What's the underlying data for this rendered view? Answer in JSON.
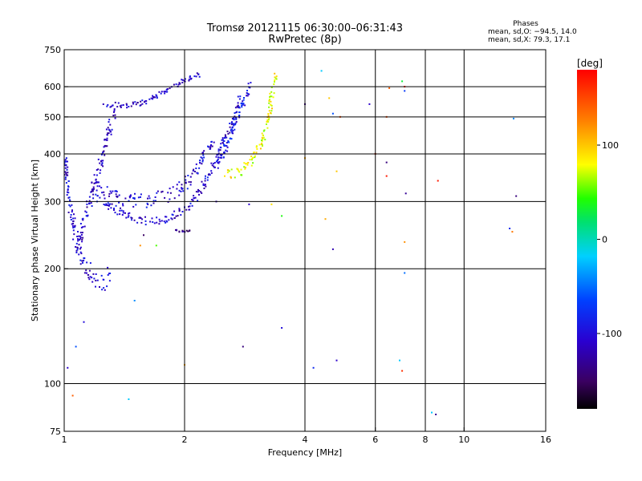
{
  "chart_data": {
    "type": "scatter",
    "title": "Tromsø 20121115 06:30:00–06:31:43",
    "subtitle": "RwPretec (8p)",
    "stats_header": "Phases",
    "stats_line1": "mean, sd,O: −94.5, 14.0",
    "stats_line2": "mean, sd,X:  79.3, 17.1",
    "xlabel": "Frequency [MHz]",
    "ylabel": "Stationary phase Virtual Height [km]",
    "x_scale": "log",
    "y_scale": "log",
    "xlim": [
      1,
      16
    ],
    "ylim": [
      75,
      750
    ],
    "x_ticks": [
      {
        "value": 1,
        "label": "1"
      },
      {
        "value": 2,
        "label": "2"
      },
      {
        "value": 4,
        "label": "4"
      },
      {
        "value": 6,
        "label": "6"
      },
      {
        "value": 8,
        "label": "8"
      },
      {
        "value": 10,
        "label": "10"
      },
      {
        "value": 16,
        "label": "16"
      }
    ],
    "y_ticks": [
      {
        "value": 75,
        "label": "75"
      },
      {
        "value": 100,
        "label": "100"
      },
      {
        "value": 200,
        "label": "200"
      },
      {
        "value": 300,
        "label": "300"
      },
      {
        "value": 400,
        "label": "400"
      },
      {
        "value": 500,
        "label": "500"
      },
      {
        "value": 600,
        "label": "600"
      },
      {
        "value": 750,
        "label": "750"
      }
    ],
    "x_gridlines": [
      2,
      4,
      6,
      8,
      10
    ],
    "y_gridlines": [
      100,
      200,
      300,
      400,
      500,
      600
    ],
    "grid": true,
    "colorbar": {
      "label": "[deg]",
      "range": [
        -180,
        180
      ],
      "ticks": [
        {
          "value": 100,
          "label": "100"
        },
        {
          "value": 0,
          "label": "0"
        },
        {
          "value": -100,
          "label": "-100"
        }
      ],
      "colormap": "rainbow"
    },
    "traces": [
      {
        "points": [
          [
            1.0,
            400
          ],
          [
            1.03,
            300
          ],
          [
            1.07,
            240
          ],
          [
            1.12,
            205
          ],
          [
            1.18,
            190
          ],
          [
            1.25,
            185
          ],
          [
            1.3,
            195
          ]
        ],
        "phase": -105,
        "spread": 0.06
      },
      {
        "points": [
          [
            1.08,
            230
          ],
          [
            1.12,
            270
          ],
          [
            1.18,
            320
          ],
          [
            1.25,
            400
          ],
          [
            1.3,
            470
          ],
          [
            1.35,
            520
          ]
        ],
        "phase": -110,
        "spread": 0.05
      },
      {
        "points": [
          [
            1.2,
            310
          ],
          [
            1.35,
            285
          ],
          [
            1.5,
            270
          ],
          [
            1.65,
            265
          ],
          [
            1.8,
            270
          ],
          [
            1.95,
            280
          ],
          [
            2.1,
            300
          ],
          [
            2.3,
            350
          ],
          [
            2.45,
            410
          ],
          [
            2.6,
            470
          ],
          [
            2.7,
            520
          ],
          [
            2.75,
            560
          ]
        ],
        "phase": -105,
        "spread": 0.025
      },
      {
        "points": [
          [
            1.25,
            540
          ],
          [
            1.45,
            535
          ],
          [
            1.6,
            548
          ],
          [
            1.75,
            575
          ],
          [
            1.9,
            605
          ],
          [
            2.05,
            628
          ],
          [
            2.2,
            645
          ]
        ],
        "phase": -110,
        "spread": 0.015
      },
      {
        "points": [
          [
            1.2,
            330
          ],
          [
            1.4,
            305
          ],
          [
            1.6,
            300
          ],
          [
            1.8,
            310
          ],
          [
            2.0,
            330
          ],
          [
            2.2,
            380
          ],
          [
            2.35,
            430
          ]
        ],
        "phase": -105,
        "spread": 0.04
      },
      {
        "points": [
          [
            2.4,
            370
          ],
          [
            2.55,
            420
          ],
          [
            2.65,
            470
          ],
          [
            2.75,
            520
          ],
          [
            2.85,
            570
          ],
          [
            2.92,
            600
          ]
        ],
        "phase": -90,
        "spread": 0.03
      },
      {
        "points": [
          [
            2.5,
            350
          ],
          [
            2.75,
            360
          ],
          [
            2.95,
            385
          ],
          [
            3.1,
            420
          ],
          [
            3.2,
            470
          ],
          [
            3.28,
            530
          ],
          [
            3.33,
            600
          ],
          [
            3.38,
            640
          ]
        ],
        "phase": 80,
        "spread": 0.03
      },
      {
        "points": [
          [
            1.9,
            252
          ],
          [
            2.0,
            250
          ],
          [
            2.08,
            252
          ]
        ],
        "phase": -140,
        "spread": 0.005
      }
    ],
    "scatter_points": [
      [
        1.02,
        110,
        -110
      ],
      [
        1.05,
        93,
        140
      ],
      [
        1.07,
        125,
        -60
      ],
      [
        1.12,
        145,
        -100
      ],
      [
        1.45,
        91,
        -20
      ],
      [
        1.5,
        165,
        -40
      ],
      [
        1.55,
        230,
        120
      ],
      [
        1.58,
        245,
        -150
      ],
      [
        1.7,
        230,
        50
      ],
      [
        2.0,
        112,
        110
      ],
      [
        2.4,
        300,
        -120
      ],
      [
        2.9,
        295,
        -110
      ],
      [
        2.8,
        125,
        -140
      ],
      [
        3.3,
        295,
        90
      ],
      [
        3.5,
        275,
        40
      ],
      [
        3.5,
        140,
        -100
      ],
      [
        4.0,
        540,
        -140
      ],
      [
        4.0,
        390,
        110
      ],
      [
        4.2,
        110,
        -80
      ],
      [
        4.4,
        660,
        -20
      ],
      [
        4.6,
        560,
        100
      ],
      [
        4.7,
        510,
        -60
      ],
      [
        4.7,
        225,
        -120
      ],
      [
        4.8,
        360,
        100
      ],
      [
        4.8,
        115,
        -110
      ],
      [
        4.5,
        270,
        110
      ],
      [
        4.9,
        500,
        150
      ],
      [
        5.8,
        540,
        -110
      ],
      [
        6.0,
        400,
        160
      ],
      [
        6.4,
        500,
        150
      ],
      [
        6.4,
        380,
        -140
      ],
      [
        6.4,
        350,
        170
      ],
      [
        6.5,
        595,
        140
      ],
      [
        6.9,
        115,
        -20
      ],
      [
        7.0,
        620,
        30
      ],
      [
        7.1,
        600,
        170
      ],
      [
        7.1,
        585,
        -70
      ],
      [
        7.1,
        235,
        120
      ],
      [
        7.1,
        195,
        -50
      ],
      [
        7.0,
        108,
        160
      ],
      [
        7.15,
        315,
        -130
      ],
      [
        8.3,
        84,
        -20
      ],
      [
        8.5,
        83,
        -130
      ],
      [
        8.6,
        340,
        170
      ],
      [
        13.0,
        255,
        -80
      ],
      [
        13.2,
        250,
        130
      ],
      [
        13.3,
        495,
        -40
      ],
      [
        13.5,
        310,
        -140
      ]
    ]
  }
}
